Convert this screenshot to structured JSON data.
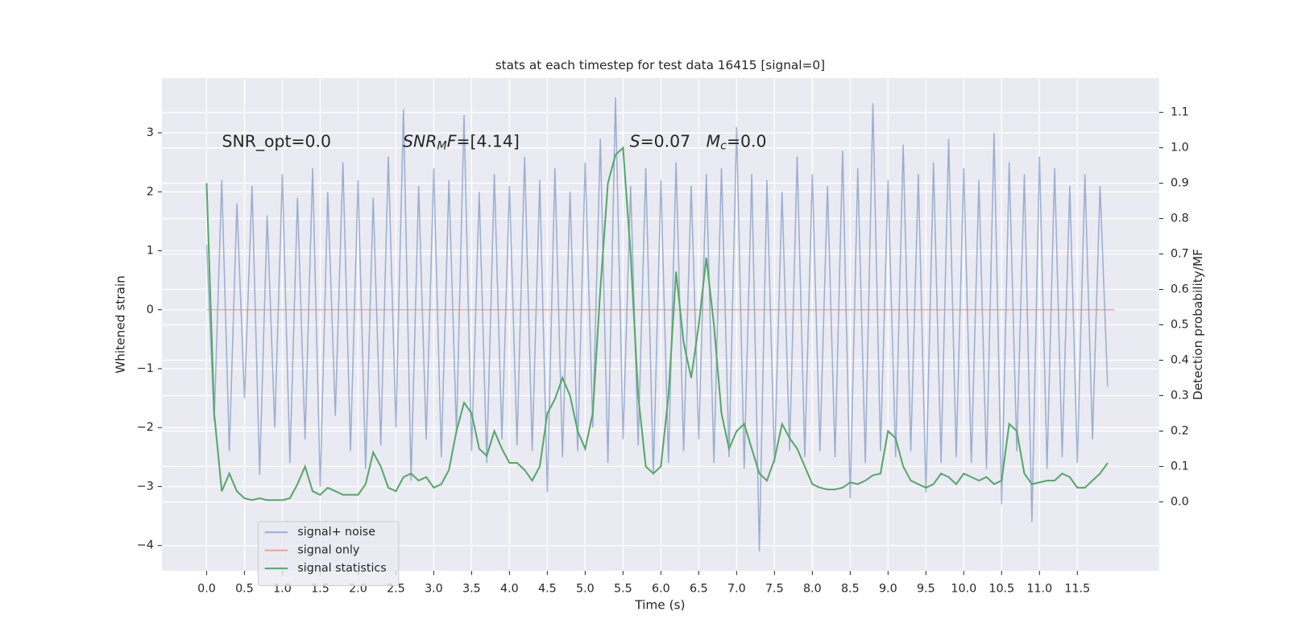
{
  "chart_data": {
    "type": "line",
    "title": "stats at each timestep for test data 16415 [signal=0]",
    "xlabel": "Time (s)",
    "ylabel": "Whitened strain",
    "y2label": "Detection probability/MF",
    "xlim": [
      -0.59,
      12.58
    ],
    "ylim": [
      -4.43,
      3.93
    ],
    "y2lim": [
      -0.195,
      1.197
    ],
    "xticks": [
      {
        "value": 0,
        "label": "0.0"
      },
      0.5,
      {
        "value": 1,
        "label": "1.0"
      },
      1.5,
      {
        "value": 2,
        "label": "2.0"
      },
      2.5,
      {
        "value": 3,
        "label": "3.0"
      },
      3.5,
      {
        "value": 4,
        "label": "4.0"
      },
      4.5,
      {
        "value": 5,
        "label": "5.0"
      },
      5.5,
      {
        "value": 6,
        "label": "6.0"
      },
      6.5,
      {
        "value": 7,
        "label": "7.0"
      },
      7.5,
      {
        "value": 8,
        "label": "8.0"
      },
      8.5,
      {
        "value": 9,
        "label": "9.0"
      },
      9.5,
      {
        "value": 10,
        "label": "10.0"
      },
      10.5,
      {
        "value": 11,
        "label": "11.0"
      },
      11.5
    ],
    "yticks": [
      {
        "value": -4,
        "label": "−4"
      },
      {
        "value": -3,
        "label": "−3"
      },
      {
        "value": -2,
        "label": "−2"
      },
      {
        "value": -1,
        "label": "−1"
      },
      0,
      1,
      2,
      3
    ],
    "y2ticks": [
      {
        "value": 0,
        "label": "0.0"
      },
      0.1,
      0.2,
      0.3,
      0.4,
      0.5,
      0.6,
      0.7,
      0.8,
      0.9,
      {
        "value": 1,
        "label": "1.0"
      },
      1.1
    ],
    "grid": true,
    "legend": "lower left",
    "annotations": [
      {
        "parts": [
          {
            "text": "SNR_opt=0.0"
          }
        ]
      },
      {
        "parts": [
          {
            "text": "SNR",
            "italic": true
          },
          {
            "text": "M",
            "italic": true,
            "sub": true
          },
          {
            "text": "F",
            "italic": true
          },
          {
            "text": "=[4.14]"
          }
        ]
      },
      {
        "parts": [
          {
            "text": "S",
            "italic": true
          },
          {
            "text": "=0.07"
          }
        ]
      },
      {
        "parts": [
          {
            "text": "M",
            "italic": true
          },
          {
            "text": "c",
            "italic": true,
            "sub": true
          },
          {
            "text": "=0.0"
          }
        ]
      }
    ],
    "x": [
      0.0,
      0.1,
      0.2,
      0.3,
      0.4,
      0.5,
      0.6,
      0.7,
      0.8,
      0.9,
      1.0,
      1.1,
      1.2,
      1.3,
      1.4,
      1.5,
      1.6,
      1.7,
      1.8,
      1.9,
      2.0,
      2.1,
      2.2,
      2.3,
      2.4,
      2.5,
      2.6,
      2.7,
      2.8,
      2.9,
      3.0,
      3.1,
      3.2,
      3.3,
      3.4,
      3.5,
      3.6,
      3.7,
      3.8,
      3.9,
      4.0,
      4.1,
      4.2,
      4.3,
      4.4,
      4.5,
      4.6,
      4.7,
      4.8,
      4.9,
      5.0,
      5.1,
      5.2,
      5.3,
      5.4,
      5.5,
      5.6,
      5.7,
      5.8,
      5.9,
      6.0,
      6.1,
      6.2,
      6.3,
      6.4,
      6.5,
      6.6,
      6.7,
      6.8,
      6.9,
      7.0,
      7.1,
      7.2,
      7.3,
      7.4,
      7.5,
      7.6,
      7.7,
      7.8,
      7.9,
      8.0,
      8.1,
      8.2,
      8.3,
      8.4,
      8.5,
      8.6,
      8.7,
      8.8,
      8.9,
      9.0,
      9.1,
      9.2,
      9.3,
      9.4,
      9.5,
      9.6,
      9.7,
      9.8,
      9.9,
      10.0,
      10.1,
      10.2,
      10.3,
      10.4,
      10.5,
      10.6,
      10.7,
      10.8,
      10.9,
      11.0,
      11.1,
      11.2,
      11.3,
      11.4,
      11.5,
      11.6,
      11.7,
      11.8,
      11.9
    ],
    "series": [
      {
        "name": "signal+ noise",
        "color": "#4c72b0",
        "opacity": 0.5,
        "values": [
          1.1,
          -1.9,
          2.2,
          -2.4,
          1.8,
          -1.5,
          2.1,
          -2.8,
          1.6,
          -2.0,
          2.3,
          -2.6,
          1.9,
          -2.2,
          2.4,
          -3.0,
          2.0,
          -1.8,
          2.5,
          -2.4,
          2.2,
          -2.7,
          1.9,
          -2.3,
          2.6,
          -2.0,
          3.4,
          -2.9,
          2.1,
          -2.2,
          2.4,
          -2.5,
          2.2,
          -2.1,
          3.3,
          -2.4,
          2.0,
          -2.6,
          2.3,
          -2.2,
          2.1,
          -2.3,
          2.6,
          -2.4,
          2.2,
          -3.1,
          2.4,
          -2.5,
          2.0,
          -2.4,
          2.5,
          -2.0,
          2.9,
          -2.6,
          3.6,
          -2.2,
          2.1,
          -2.3,
          2.4,
          -2.8,
          2.2,
          -2.6,
          2.5,
          -2.4,
          2.1,
          -2.2,
          2.3,
          -2.6,
          2.4,
          -2.5,
          3.1,
          -2.7,
          2.3,
          -4.1,
          2.2,
          -2.6,
          2.0,
          -2.4,
          2.6,
          -2.5,
          2.3,
          -2.4,
          2.1,
          -2.5,
          2.7,
          -3.2,
          2.4,
          -2.6,
          3.5,
          -2.4,
          2.2,
          -2.5,
          2.8,
          -2.4,
          2.3,
          -3.1,
          2.5,
          -2.6,
          2.9,
          -2.5,
          2.4,
          -2.6,
          2.2,
          -2.7,
          3.0,
          -3.3,
          2.5,
          -2.4,
          2.3,
          -3.6,
          2.6,
          -2.7,
          2.4,
          -2.5,
          2.1,
          -2.6,
          2.3,
          -2.2,
          2.1,
          -1.3
        ]
      },
      {
        "name": "signal only",
        "color": "#dd8452",
        "opacity": 0.6,
        "x": [
          0.0,
          11.99
        ],
        "values": [
          0,
          0
        ]
      },
      {
        "name": "signal statistics",
        "color": "#55a868",
        "opacity": 1,
        "axis": "y2",
        "values": [
          0.9,
          0.25,
          0.03,
          0.08,
          0.03,
          0.01,
          0.005,
          0.01,
          0.005,
          0.005,
          0.005,
          0.01,
          0.05,
          0.1,
          0.03,
          0.02,
          0.04,
          0.03,
          0.02,
          0.02,
          0.02,
          0.05,
          0.14,
          0.1,
          0.04,
          0.03,
          0.07,
          0.08,
          0.06,
          0.07,
          0.04,
          0.05,
          0.09,
          0.2,
          0.28,
          0.25,
          0.15,
          0.13,
          0.2,
          0.15,
          0.11,
          0.11,
          0.09,
          0.06,
          0.1,
          0.25,
          0.29,
          0.35,
          0.3,
          0.2,
          0.15,
          0.25,
          0.6,
          0.9,
          0.98,
          1.0,
          0.7,
          0.3,
          0.1,
          0.08,
          0.1,
          0.3,
          0.65,
          0.45,
          0.35,
          0.5,
          0.69,
          0.5,
          0.25,
          0.15,
          0.2,
          0.22,
          0.15,
          0.08,
          0.06,
          0.12,
          0.22,
          0.18,
          0.15,
          0.1,
          0.05,
          0.04,
          0.035,
          0.035,
          0.04,
          0.055,
          0.05,
          0.06,
          0.075,
          0.08,
          0.2,
          0.18,
          0.1,
          0.06,
          0.05,
          0.04,
          0.05,
          0.08,
          0.07,
          0.05,
          0.08,
          0.07,
          0.06,
          0.07,
          0.05,
          0.06,
          0.22,
          0.2,
          0.08,
          0.05,
          0.055,
          0.06,
          0.06,
          0.08,
          0.07,
          0.04,
          0.04,
          0.06,
          0.08,
          0.11
        ]
      }
    ]
  }
}
